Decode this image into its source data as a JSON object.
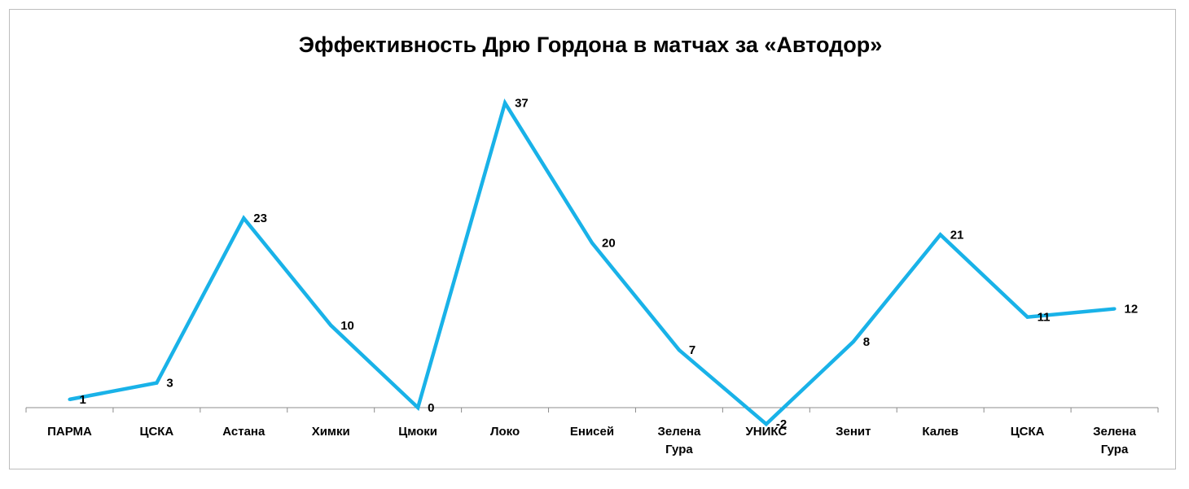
{
  "chart_data": {
    "type": "line",
    "title": "Эффективность Дрю Гордона в матчах за «Автодор»",
    "xlabel": "",
    "ylabel": "",
    "categories": [
      [
        "ПАРМА"
      ],
      [
        "ЦСКА"
      ],
      [
        "Астана"
      ],
      [
        "Химки"
      ],
      [
        "Цмоки"
      ],
      [
        "Локо"
      ],
      [
        "Енисей"
      ],
      [
        "Зелена",
        "Гура"
      ],
      [
        "УНИКС"
      ],
      [
        "Зенит"
      ],
      [
        "Калев"
      ],
      [
        "ЦСКА"
      ],
      [
        "Зелена",
        "Гура"
      ]
    ],
    "series": [
      {
        "values": [
          1,
          3,
          23,
          10,
          0,
          37,
          20,
          7,
          -2,
          8,
          21,
          11,
          12
        ],
        "labels": [
          "1",
          "3",
          "23",
          "10",
          "0",
          "37",
          "20",
          "7",
          "-2",
          "8",
          "21",
          "11",
          "12"
        ],
        "color": "#19b2e8"
      }
    ],
    "ylim": [
      -2,
      37
    ],
    "grid": false,
    "legend": "none",
    "data_labels": true
  }
}
